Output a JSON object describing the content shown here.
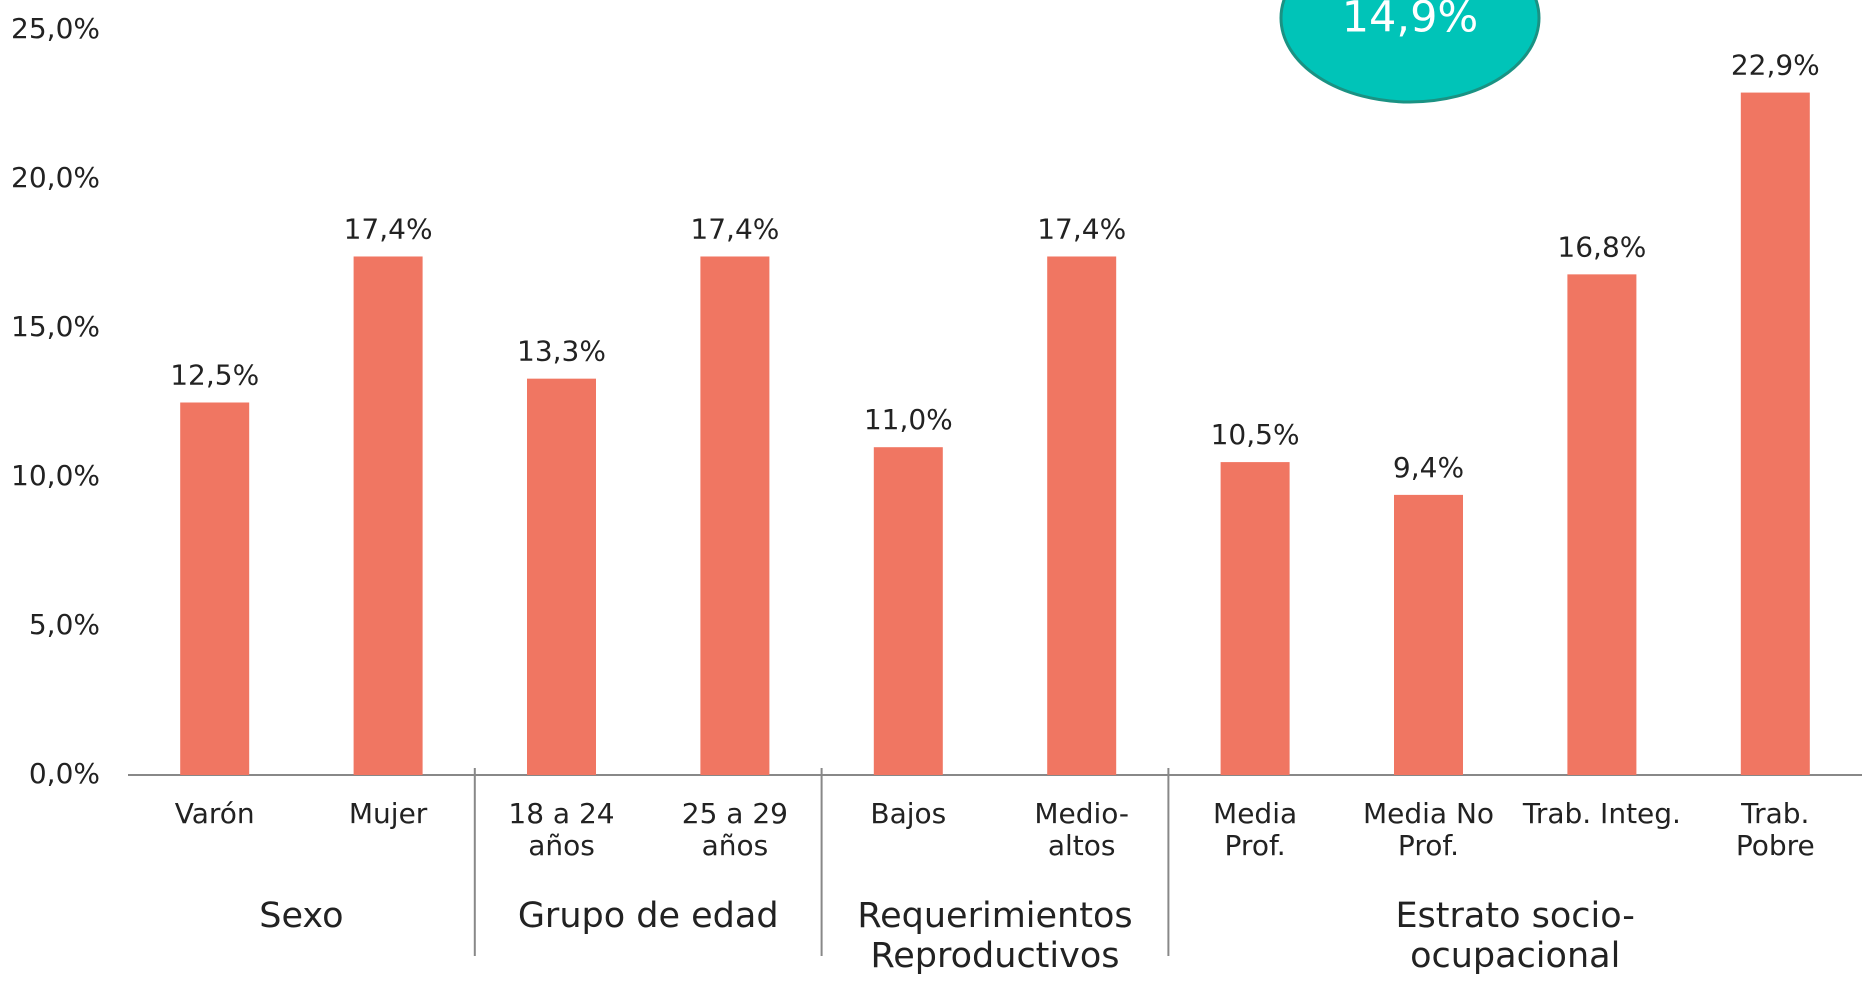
{
  "chart_data": {
    "type": "bar",
    "categories": [
      "Varón",
      "Mujer",
      "18 a 24\naños",
      "25 a 29\naños",
      "Bajos",
      "Medio-\naltos",
      "Media\nProf.",
      "Media No\nProf.",
      "Trab. Integ.",
      "Trab.\nPobre"
    ],
    "values": [
      12.5,
      17.4,
      13.3,
      17.4,
      11.0,
      17.4,
      10.5,
      9.4,
      16.8,
      22.9
    ],
    "value_labels": [
      "12,5%",
      "17,4%",
      "13,3%",
      "17,4%",
      "11,0%",
      "17,4%",
      "10,5%",
      "9,4%",
      "16,8%",
      "22,9%"
    ],
    "groups": [
      {
        "name": "Sexo",
        "count": 2
      },
      {
        "name": "Grupo de edad",
        "count": 2
      },
      {
        "name": "Requerimientos\nReproductivos",
        "count": 2
      },
      {
        "name": "Estrato socio-ocupacional",
        "count": 4
      }
    ],
    "color": "#f07662",
    "ylim": [
      0,
      25
    ],
    "yticks": [
      {
        "value": 0,
        "label": "0,0%"
      },
      {
        "value": 5,
        "label": "5,0%"
      },
      {
        "value": 10,
        "label": "10,0%"
      },
      {
        "value": 15,
        "label": "15,0%"
      },
      {
        "value": 20,
        "label": "20,0%"
      },
      {
        "value": 25,
        "label": "25,0%"
      }
    ],
    "grid": false,
    "annotation": "14,9%"
  }
}
